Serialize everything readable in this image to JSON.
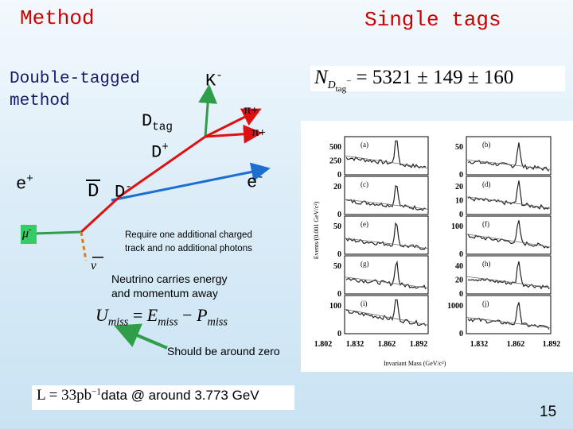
{
  "title": "Method",
  "subtitle": "Single tags",
  "method": [
    "Double-tagged",
    "method"
  ],
  "particles": {
    "k": {
      "base": "K",
      "sup": "-"
    },
    "pi1": {
      "base": "π",
      "sup": "+"
    },
    "pi2": {
      "base": "π",
      "sup": "+"
    },
    "dtag": {
      "base": "D",
      "sub": "tag"
    },
    "dplus": {
      "base": "D",
      "sup": "+"
    },
    "eplus": {
      "base": "e",
      "sup": "+"
    },
    "dbar": "D",
    "dminus": {
      "base": "D",
      "sup": "-"
    },
    "eminus": {
      "base": "e",
      "sup": "-"
    },
    "mu": {
      "base": "μ",
      "sup": "-"
    },
    "nu": "ν"
  },
  "notes": {
    "require": [
      "Require one additional charged",
      "track and no additional photons"
    ],
    "neutrino": [
      "Neutrino carries energy",
      "and momentum away"
    ],
    "zero": "Should be around zero"
  },
  "umiss": {
    "u": "U",
    "usub": "miss",
    "eq": "=",
    "e": "E",
    "esub": "miss",
    "minus": "−",
    "p": "P",
    "psub": "miss"
  },
  "yield": {
    "symbol": "N",
    "sub": "D",
    "subsub": "tag",
    "sup": "−",
    "rest": "= 5321 ± 149 ± 160"
  },
  "luminosity": {
    "formula": "L = 33pb",
    "sup": "−1",
    "text": "data @ around 3.773 GeV"
  },
  "figure": {
    "panels": [
      {
        "label": "(a)",
        "ticks": [
          "500",
          "250",
          "0"
        ]
      },
      {
        "label": "(b)",
        "ticks": [
          "50",
          "0"
        ]
      },
      {
        "label": "(c)",
        "ticks": [
          "20",
          "0"
        ]
      },
      {
        "label": "(d)",
        "ticks": [
          "20",
          "10",
          "0"
        ]
      },
      {
        "label": "(e)",
        "ticks": [
          "50",
          "0"
        ]
      },
      {
        "label": "(f)",
        "ticks": [
          "100",
          "0"
        ]
      },
      {
        "label": "(g)",
        "ticks": [
          "50",
          "0"
        ]
      },
      {
        "label": "(h)",
        "ticks": [
          "40",
          "20",
          "0"
        ]
      },
      {
        "label": "(i)",
        "ticks": [
          "100",
          "0"
        ]
      },
      {
        "label": "(j)",
        "ticks": [
          "1000",
          "0"
        ]
      }
    ],
    "xlabels": [
      "1.802",
      "1.832",
      "1.862",
      "1.892",
      "1.832",
      "1.862",
      "1.892"
    ],
    "xtitle": "Invariant Mass (GeV/c²)",
    "ytitle": "Events/(0.001 GeV/c²)"
  },
  "page_number": "15"
}
